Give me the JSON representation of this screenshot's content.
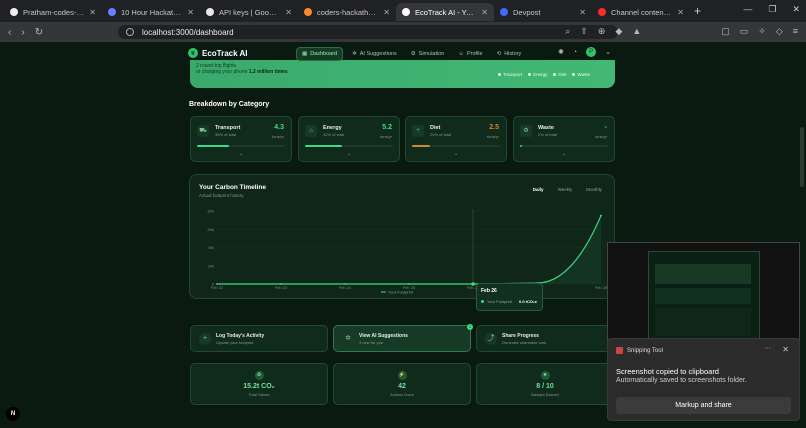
{
  "browser": {
    "tabs": [
      {
        "label": "Pratham-codes-py/hackth",
        "color": "#f0f0f0"
      },
      {
        "label": "10 Hour Hackathon Vibe |",
        "color": "#6a7cff"
      },
      {
        "label": "API keys | Google AI Studi",
        "color": "#e8e8e8"
      },
      {
        "label": "coders-hackathon – Datab",
        "color": "#ff8a2a"
      },
      {
        "label": "EcoTrack AI - Your Per",
        "color": "#ffffff"
      },
      {
        "label": "Devpost",
        "color": "#3d6bff"
      },
      {
        "label": "Channel content - YouTube",
        "color": "#ff2a2a"
      }
    ],
    "url": "localhost:3000/dashboard"
  },
  "app": {
    "brand": "EcoTrack AI",
    "menu": [
      "Dashboard",
      "AI Suggestions",
      "Simulation",
      "Profile",
      "History"
    ],
    "avatar_letter": "P"
  },
  "hero": {
    "line1": "2 round-trip flights",
    "line2a": "or charging your phone ",
    "line2b": "1.2 million times",
    "legend": [
      "Transport",
      "Energy",
      "Diet",
      "Waste"
    ]
  },
  "breakdown": {
    "title": "Breakdown by Category",
    "items": [
      {
        "name": "Transport",
        "sub": "36% of total",
        "value": "4.3",
        "unit": "tons/yr",
        "color": "#3ddc84",
        "pct": 0.36
      },
      {
        "name": "Energy",
        "sub": "42% of total",
        "value": "5.2",
        "unit": "tons/yr",
        "color": "#3ddc84",
        "pct": 0.42
      },
      {
        "name": "Diet",
        "sub": "20% of total",
        "value": "2.5",
        "unit": "tons/yr",
        "color": "#d08a2e",
        "pct": 0.2
      },
      {
        "name": "Waste",
        "sub": "2% of total",
        "value": "-",
        "unit": "tons/yr",
        "color": "#3ddc84",
        "pct": 0.02
      }
    ]
  },
  "timeline": {
    "title": "Your Carbon Timeline",
    "subtitle": "Actual footprint history",
    "tabs": [
      "Daily",
      "Weekly",
      "Monthly"
    ],
    "legend": "Your Footprint",
    "tooltip": {
      "date": "Feb 26",
      "label": "Your Footprint",
      "value": "0.0 tCO₂e"
    }
  },
  "chart_data": {
    "type": "line",
    "categories": [
      "Feb 22",
      "Feb 23",
      "Feb 24",
      "Feb 25",
      "Feb 26",
      "Feb 27",
      "Feb 28"
    ],
    "series": [
      {
        "name": "Your Footprint",
        "values": [
          0,
          0,
          0,
          0,
          0,
          1000,
          75000
        ]
      }
    ],
    "yticks": [
      "0",
      "20k",
      "40k",
      "60k",
      "80k"
    ],
    "ylim": [
      0,
      80000
    ],
    "color": "#3ddc84"
  },
  "actions": [
    {
      "title": "Log Today's Activity",
      "sub": "Update your footprint",
      "icon": "+"
    },
    {
      "title": "View AI Suggestions",
      "sub": "3 new for you",
      "icon": "✲",
      "badge": "3"
    },
    {
      "title": "Share Progress",
      "sub": "Generate shareable card",
      "icon": "⤴"
    }
  ],
  "stats": [
    {
      "value": "15.2t CO₂",
      "label": "Total Saved"
    },
    {
      "value": "42",
      "label": "Actions Done"
    },
    {
      "value": "8 / 10",
      "label": "Badges Earned"
    }
  ],
  "toast": {
    "app": "Snipping Tool",
    "line1": "Screenshot copied to clipboard",
    "line2": "Automatically saved to screenshots folder.",
    "button": "Markup and share"
  },
  "devtools_badge": "N"
}
